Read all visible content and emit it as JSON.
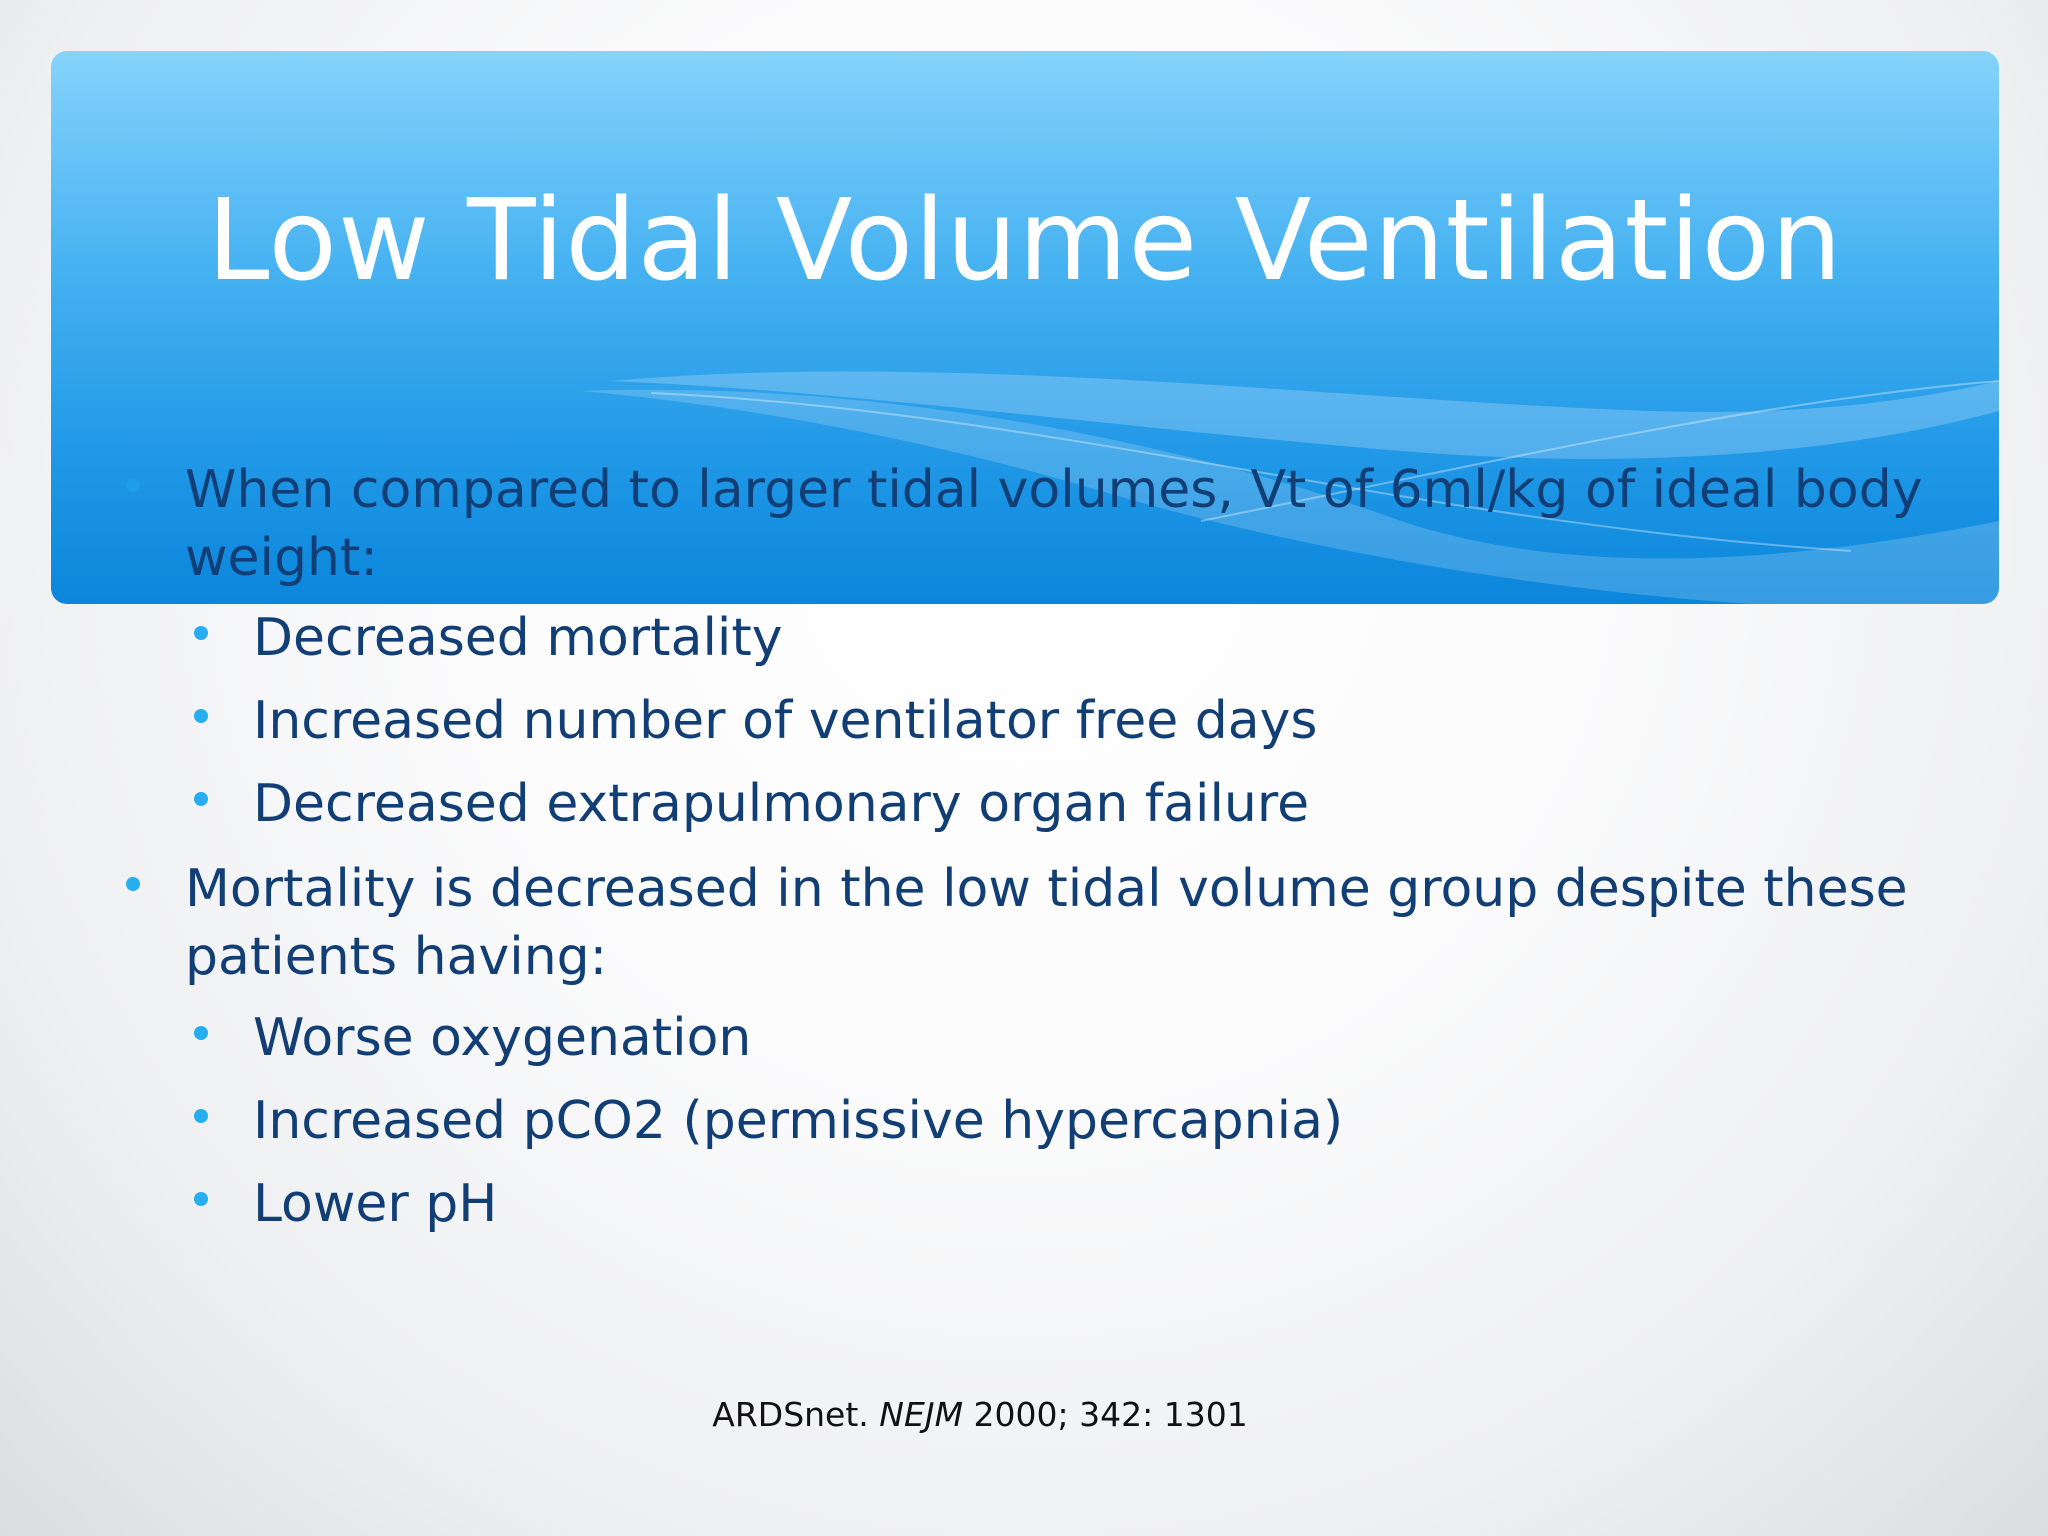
{
  "slide": {
    "title": "Low Tidal Volume Ventilation",
    "bullets": [
      {
        "level": 1,
        "text": "When compared to larger tidal volumes, Vt of 6ml/kg of ideal body weight:"
      },
      {
        "level": 2,
        "text": "Decreased mortality"
      },
      {
        "level": 2,
        "text": "Increased number of ventilator free days"
      },
      {
        "level": 2,
        "text": "Decreased extrapulmonary organ failure"
      },
      {
        "level": 1,
        "text": "Mortality is decreased in the low tidal volume group despite these patients having:"
      },
      {
        "level": 2,
        "text": "Worse oxygenation"
      },
      {
        "level": 2,
        "text": "Increased pCO2 (permissive hypercapnia)"
      },
      {
        "level": 2,
        "text": "Lower pH"
      }
    ],
    "citation": {
      "author": "ARDSnet.",
      "journal": "NEJM",
      "details": "2000; 342: 1301"
    }
  },
  "colors": {
    "header_top": "#86d3fb",
    "header_bottom": "#0b86db",
    "body_text": "#123e76",
    "bullet": "#27aef0",
    "title_text": "#ffffff"
  }
}
